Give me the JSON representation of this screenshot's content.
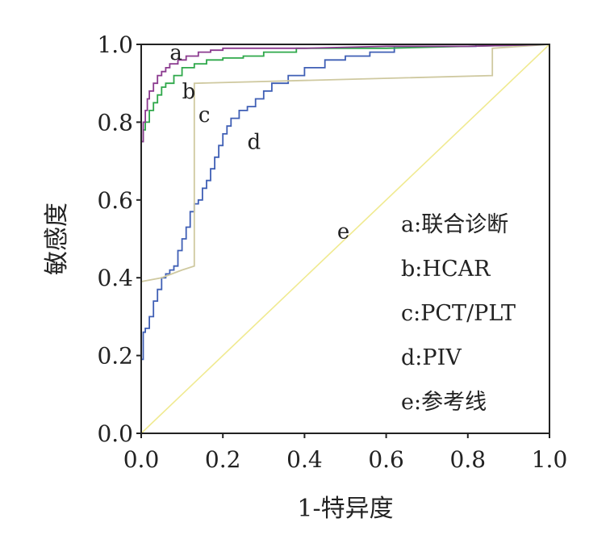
{
  "chart_data": {
    "type": "line",
    "xlabel": "1-特异度",
    "ylabel": "敏感度",
    "xlim": [
      0,
      1
    ],
    "ylim": [
      0,
      1
    ],
    "x_ticks": [
      "0.0",
      "0.2",
      "0.4",
      "0.6",
      "0.8",
      "1.0"
    ],
    "y_ticks": [
      "0.0",
      "0.2",
      "0.4",
      "0.6",
      "0.8",
      "1.0"
    ],
    "grid": false,
    "legend_position": "right-middle",
    "legend": [
      {
        "key": "a",
        "sep": ":",
        "text": "联合诊断"
      },
      {
        "key": "b",
        "sep": ":",
        "text": "HCAR"
      },
      {
        "key": "c",
        "sep": ":",
        "text": "PCT/PLT"
      },
      {
        "key": "d",
        "sep": ":",
        "text": "PIV"
      },
      {
        "key": "e",
        "sep": ":",
        "text": "参考线"
      }
    ],
    "series": [
      {
        "letter": "a",
        "color": "#8b3a8f",
        "label_at": [
          0.07,
          0.99
        ],
        "x": [
          0.0,
          0.0,
          0.005,
          0.005,
          0.01,
          0.01,
          0.015,
          0.015,
          0.02,
          0.02,
          0.03,
          0.03,
          0.04,
          0.04,
          0.05,
          0.05,
          0.06,
          0.06,
          0.07,
          0.07,
          0.09,
          0.09,
          0.11,
          0.11,
          0.14,
          0.14,
          0.17,
          0.17,
          0.2,
          0.2,
          0.4,
          0.6,
          0.8,
          1.0
        ],
        "y": [
          0.0,
          0.75,
          0.75,
          0.8,
          0.8,
          0.83,
          0.83,
          0.86,
          0.86,
          0.88,
          0.88,
          0.9,
          0.9,
          0.92,
          0.92,
          0.93,
          0.93,
          0.94,
          0.94,
          0.95,
          0.95,
          0.96,
          0.96,
          0.97,
          0.97,
          0.98,
          0.98,
          0.985,
          0.985,
          0.99,
          0.99,
          0.995,
          0.995,
          1.0
        ]
      },
      {
        "letter": "b",
        "color": "#2ea84a",
        "label_at": [
          0.1,
          0.89
        ],
        "x": [
          0.0,
          0.0,
          0.005,
          0.005,
          0.01,
          0.01,
          0.02,
          0.02,
          0.03,
          0.03,
          0.04,
          0.04,
          0.05,
          0.05,
          0.06,
          0.06,
          0.08,
          0.08,
          0.1,
          0.1,
          0.13,
          0.13,
          0.16,
          0.16,
          0.2,
          0.2,
          0.25,
          0.25,
          0.3,
          0.3,
          0.38,
          0.38,
          0.6,
          0.8,
          1.0
        ],
        "y": [
          0.0,
          0.75,
          0.75,
          0.78,
          0.78,
          0.8,
          0.8,
          0.83,
          0.83,
          0.85,
          0.85,
          0.87,
          0.87,
          0.89,
          0.89,
          0.9,
          0.9,
          0.92,
          0.92,
          0.94,
          0.94,
          0.95,
          0.95,
          0.96,
          0.96,
          0.965,
          0.965,
          0.97,
          0.97,
          0.98,
          0.98,
          0.99,
          0.99,
          0.995,
          1.0
        ]
      },
      {
        "letter": "c",
        "color": "#cfc9a0",
        "label_at": [
          0.14,
          0.83
        ],
        "x": [
          0.0,
          0.0,
          0.05,
          0.1,
          0.13,
          0.13,
          0.5,
          0.86,
          0.86,
          1.0
        ],
        "y": [
          0.0,
          0.39,
          0.4,
          0.42,
          0.43,
          0.9,
          0.91,
          0.92,
          0.99,
          1.0
        ]
      },
      {
        "letter": "d",
        "color": "#3f5fb5",
        "label_at": [
          0.26,
          0.76
        ],
        "x": [
          0.0,
          0.0,
          0.005,
          0.005,
          0.01,
          0.01,
          0.02,
          0.02,
          0.03,
          0.03,
          0.04,
          0.04,
          0.05,
          0.05,
          0.06,
          0.06,
          0.07,
          0.07,
          0.08,
          0.08,
          0.09,
          0.09,
          0.1,
          0.1,
          0.11,
          0.11,
          0.12,
          0.12,
          0.13,
          0.13,
          0.14,
          0.14,
          0.15,
          0.15,
          0.16,
          0.16,
          0.17,
          0.17,
          0.18,
          0.18,
          0.19,
          0.19,
          0.2,
          0.2,
          0.21,
          0.21,
          0.22,
          0.22,
          0.24,
          0.24,
          0.26,
          0.26,
          0.28,
          0.28,
          0.3,
          0.3,
          0.32,
          0.32,
          0.36,
          0.36,
          0.4,
          0.4,
          0.45,
          0.45,
          0.5,
          0.5,
          0.56,
          0.56,
          0.62,
          0.62,
          0.82,
          0.82,
          1.0
        ],
        "y": [
          0.0,
          0.19,
          0.19,
          0.26,
          0.26,
          0.27,
          0.27,
          0.3,
          0.3,
          0.34,
          0.34,
          0.37,
          0.37,
          0.4,
          0.4,
          0.41,
          0.41,
          0.42,
          0.42,
          0.43,
          0.43,
          0.47,
          0.47,
          0.5,
          0.5,
          0.53,
          0.53,
          0.57,
          0.57,
          0.59,
          0.59,
          0.6,
          0.6,
          0.63,
          0.63,
          0.65,
          0.65,
          0.68,
          0.68,
          0.71,
          0.71,
          0.74,
          0.74,
          0.77,
          0.77,
          0.79,
          0.79,
          0.81,
          0.81,
          0.83,
          0.83,
          0.84,
          0.84,
          0.86,
          0.86,
          0.88,
          0.88,
          0.9,
          0.9,
          0.92,
          0.92,
          0.94,
          0.94,
          0.96,
          0.96,
          0.97,
          0.97,
          0.98,
          0.98,
          0.995,
          0.995,
          1.0,
          1.0
        ]
      },
      {
        "letter": "e",
        "color": "#f0ea90",
        "label_at": [
          0.48,
          0.53
        ],
        "x": [
          0.0,
          1.0
        ],
        "y": [
          0.0,
          1.0
        ]
      }
    ]
  }
}
